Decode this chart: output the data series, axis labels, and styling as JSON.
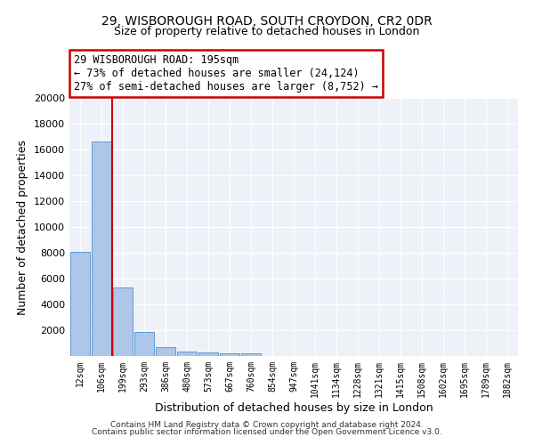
{
  "title1": "29, WISBOROUGH ROAD, SOUTH CROYDON, CR2 0DR",
  "title2": "Size of property relative to detached houses in London",
  "xlabel": "Distribution of detached houses by size in London",
  "ylabel": "Number of detached properties",
  "bar_color": "#aec6e8",
  "bar_edge_color": "#5b9bd5",
  "vline_color": "#cc0000",
  "vline_x": 1.5,
  "annotation_box_color": "#cc0000",
  "annotation_lines": [
    "29 WISBOROUGH ROAD: 195sqm",
    "← 73% of detached houses are smaller (24,124)",
    "27% of semi-detached houses are larger (8,752) →"
  ],
  "categories": [
    "12sqm",
    "106sqm",
    "199sqm",
    "293sqm",
    "386sqm",
    "480sqm",
    "573sqm",
    "667sqm",
    "760sqm",
    "854sqm",
    "947sqm",
    "1041sqm",
    "1134sqm",
    "1228sqm",
    "1321sqm",
    "1415sqm",
    "1508sqm",
    "1602sqm",
    "1695sqm",
    "1789sqm",
    "1882sqm"
  ],
  "bar_heights": [
    8100,
    16600,
    5300,
    1850,
    700,
    360,
    280,
    230,
    190,
    0,
    0,
    0,
    0,
    0,
    0,
    0,
    0,
    0,
    0,
    0,
    0
  ],
  "ylim": [
    0,
    20000
  ],
  "yticks": [
    0,
    2000,
    4000,
    6000,
    8000,
    10000,
    12000,
    14000,
    16000,
    18000,
    20000
  ],
  "footer1": "Contains HM Land Registry data © Crown copyright and database right 2024.",
  "footer2": "Contains public sector information licensed under the Open Government Licence v3.0."
}
